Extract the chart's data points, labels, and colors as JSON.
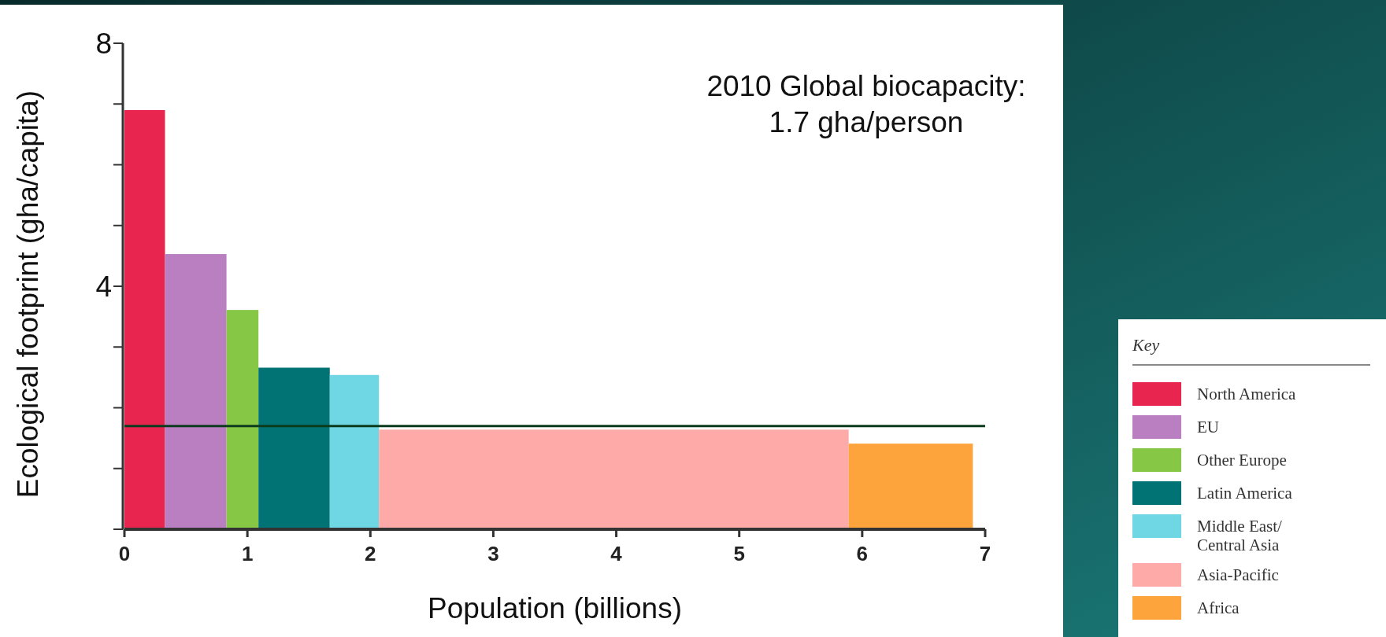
{
  "chart_data": {
    "type": "histogram",
    "xlabel": "Population (billions)",
    "ylabel": "Ecological footprint (gha/capita)",
    "legend_title": "Key",
    "legend": "bottom right",
    "annotations": [
      "2010 Global biocapacity: 1.7 gha/person"
    ],
    "xlim": [
      0,
      7
    ],
    "xticks": [
      0,
      1,
      2,
      3,
      4,
      5,
      6,
      7
    ],
    "ylim": [
      0,
      8
    ],
    "yticks": [
      {
        "value": 0,
        "label": null
      },
      {
        "value": 1,
        "label": null
      },
      {
        "value": 2,
        "label": null
      },
      {
        "value": 3,
        "label": null
      },
      4,
      {
        "value": 5,
        "label": null
      },
      {
        "value": 6,
        "label": null
      },
      {
        "value": 7,
        "label": null
      },
      8
    ],
    "bins": [
      0,
      0.33,
      0.83,
      1.09,
      1.67,
      2.07,
      5.89,
      6.9
    ],
    "series": [
      {
        "name": "North America",
        "color": "#e8254f",
        "values": [
          6.9,
          null,
          null,
          null,
          null,
          null,
          null
        ]
      },
      {
        "name": "EU",
        "color": "#b97fc1",
        "values": [
          null,
          4.53,
          null,
          null,
          null,
          null,
          null
        ]
      },
      {
        "name": "Other Europe",
        "color": "#86c745",
        "values": [
          null,
          null,
          3.61,
          null,
          null,
          null,
          null
        ]
      },
      {
        "name": "Latin America",
        "color": "#027374",
        "values": [
          null,
          null,
          null,
          2.66,
          null,
          null,
          null
        ]
      },
      {
        "name": "Middle East/ Central Asia",
        "color": "#6fd6e3",
        "values": [
          null,
          null,
          null,
          null,
          2.54,
          null,
          null
        ]
      },
      {
        "name": "Asia-Pacific",
        "color": "#fdaaa8",
        "values": [
          null,
          null,
          null,
          null,
          null,
          1.64,
          null
        ]
      },
      {
        "name": "Africa",
        "color": "#fea43c",
        "values": [
          null,
          null,
          null,
          null,
          null,
          null,
          1.41
        ]
      }
    ],
    "ref_lines": [
      {
        "axis": "y",
        "value": 1.7,
        "color": "#0d3b1e"
      }
    ]
  }
}
